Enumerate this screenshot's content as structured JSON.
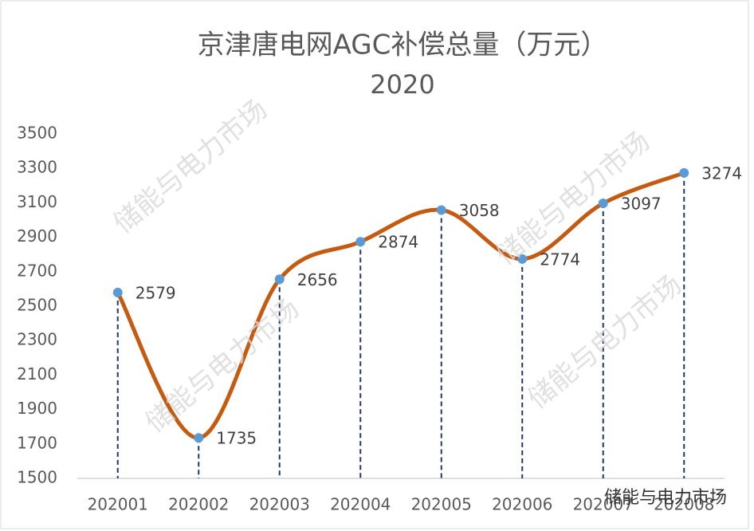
{
  "chart_data": {
    "type": "line",
    "title": "京津唐电网AGC补偿总量（万元）",
    "subtitle": "2020",
    "categories": [
      "202001",
      "202002",
      "202003",
      "202004",
      "202005",
      "202006",
      "202007",
      "202008"
    ],
    "series": [
      {
        "name": "AGC补偿总量",
        "color": "#c55a11",
        "marker_color": "#5b9bd5",
        "values": [
          2579,
          1735,
          2656,
          2874,
          3058,
          2774,
          3097,
          3274
        ]
      }
    ],
    "ylim": [
      1500,
      3500
    ],
    "yticks": [
      1500,
      1700,
      1900,
      2100,
      2300,
      2500,
      2700,
      2900,
      3100,
      3300,
      3500
    ],
    "smooth": true,
    "drop_lines": true,
    "drop_line_color": "#1f3864",
    "data_labels": true,
    "watermark": "储能与电力市场"
  }
}
